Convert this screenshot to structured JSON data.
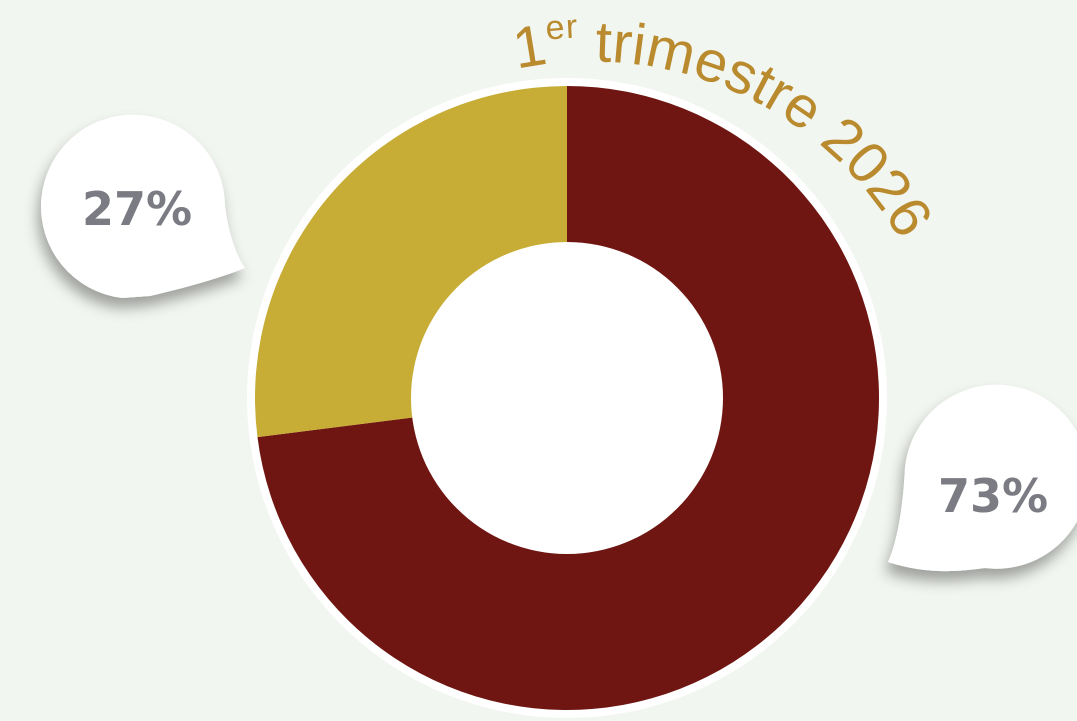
{
  "colors": {
    "background": "#f2f6f0",
    "ring_outline": "#ffffff",
    "hole": "#ffffff",
    "title": "#b98a2e",
    "label": "#7b7c83"
  },
  "chart_data": {
    "type": "pie",
    "variant": "donut",
    "title": {
      "prefix": "1",
      "superscript": "er",
      "text": " trimestre 2026"
    },
    "slices": [
      {
        "value": 73,
        "label": "73%",
        "color": "#6f1512"
      },
      {
        "value": 27,
        "label": "27%",
        "color": "#c7ad35"
      }
    ],
    "start_angle_deg": 0,
    "direction": "clockwise"
  }
}
